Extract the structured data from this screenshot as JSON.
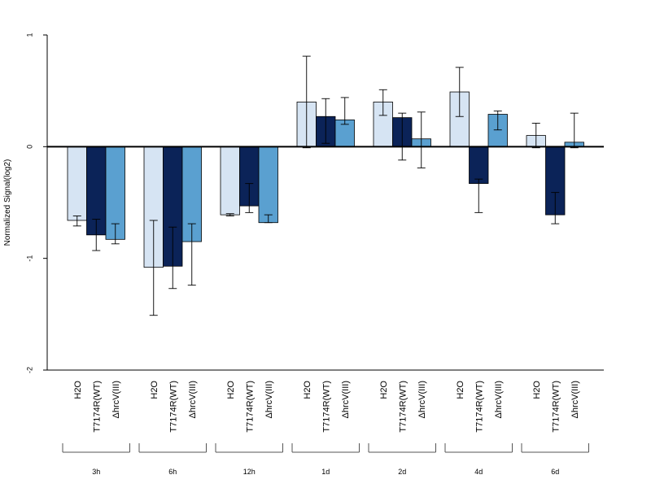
{
  "chart_data": {
    "type": "bar",
    "ylabel": "Normalized Signal(log2)",
    "ylim": [
      -2,
      1
    ],
    "yticks": [
      1,
      0,
      -1,
      -2
    ],
    "ytick_labels": [
      "1",
      "0",
      "-1",
      "-2"
    ],
    "grid": false,
    "legend": "none",
    "conditions": [
      "H2O",
      "T7174R(WT)",
      "ΔhrcV(III)"
    ],
    "colors": [
      "#d6e4f3",
      "#0b2358",
      "#5aa0d0"
    ],
    "groups": [
      {
        "label": "3h",
        "values": [
          -0.66,
          -0.79,
          -0.83
        ],
        "errors": [
          [
            -0.71,
            -0.62
          ],
          [
            -0.93,
            -0.65
          ],
          [
            -0.87,
            -0.69
          ]
        ]
      },
      {
        "label": "6h",
        "values": [
          -1.08,
          -1.07,
          -0.85
        ],
        "errors": [
          [
            -1.51,
            -0.66
          ],
          [
            -1.27,
            -0.72
          ],
          [
            -1.24,
            -0.69
          ]
        ]
      },
      {
        "label": "12h",
        "values": [
          -0.61,
          -0.53,
          -0.68
        ],
        "errors": [
          [
            -0.62,
            -0.6
          ],
          [
            -0.59,
            -0.33
          ],
          [
            -0.68,
            -0.61
          ]
        ]
      },
      {
        "label": "1d",
        "values": [
          0.4,
          0.27,
          0.24
        ],
        "errors": [
          [
            -0.01,
            0.81
          ],
          [
            0.03,
            0.43
          ],
          [
            0.2,
            0.44
          ]
        ]
      },
      {
        "label": "2d",
        "values": [
          0.4,
          0.26,
          0.07
        ],
        "errors": [
          [
            0.28,
            0.51
          ],
          [
            -0.12,
            0.3
          ],
          [
            -0.19,
            0.31
          ]
        ]
      },
      {
        "label": "4d",
        "values": [
          0.49,
          -0.33,
          0.29
        ],
        "errors": [
          [
            0.27,
            0.71
          ],
          [
            -0.59,
            -0.29
          ],
          [
            0.15,
            0.32
          ]
        ]
      },
      {
        "label": "6d",
        "values": [
          0.1,
          -0.61,
          0.04
        ],
        "errors": [
          [
            -0.01,
            0.21
          ],
          [
            -0.69,
            -0.41
          ],
          [
            -0.01,
            0.3
          ]
        ]
      }
    ]
  }
}
